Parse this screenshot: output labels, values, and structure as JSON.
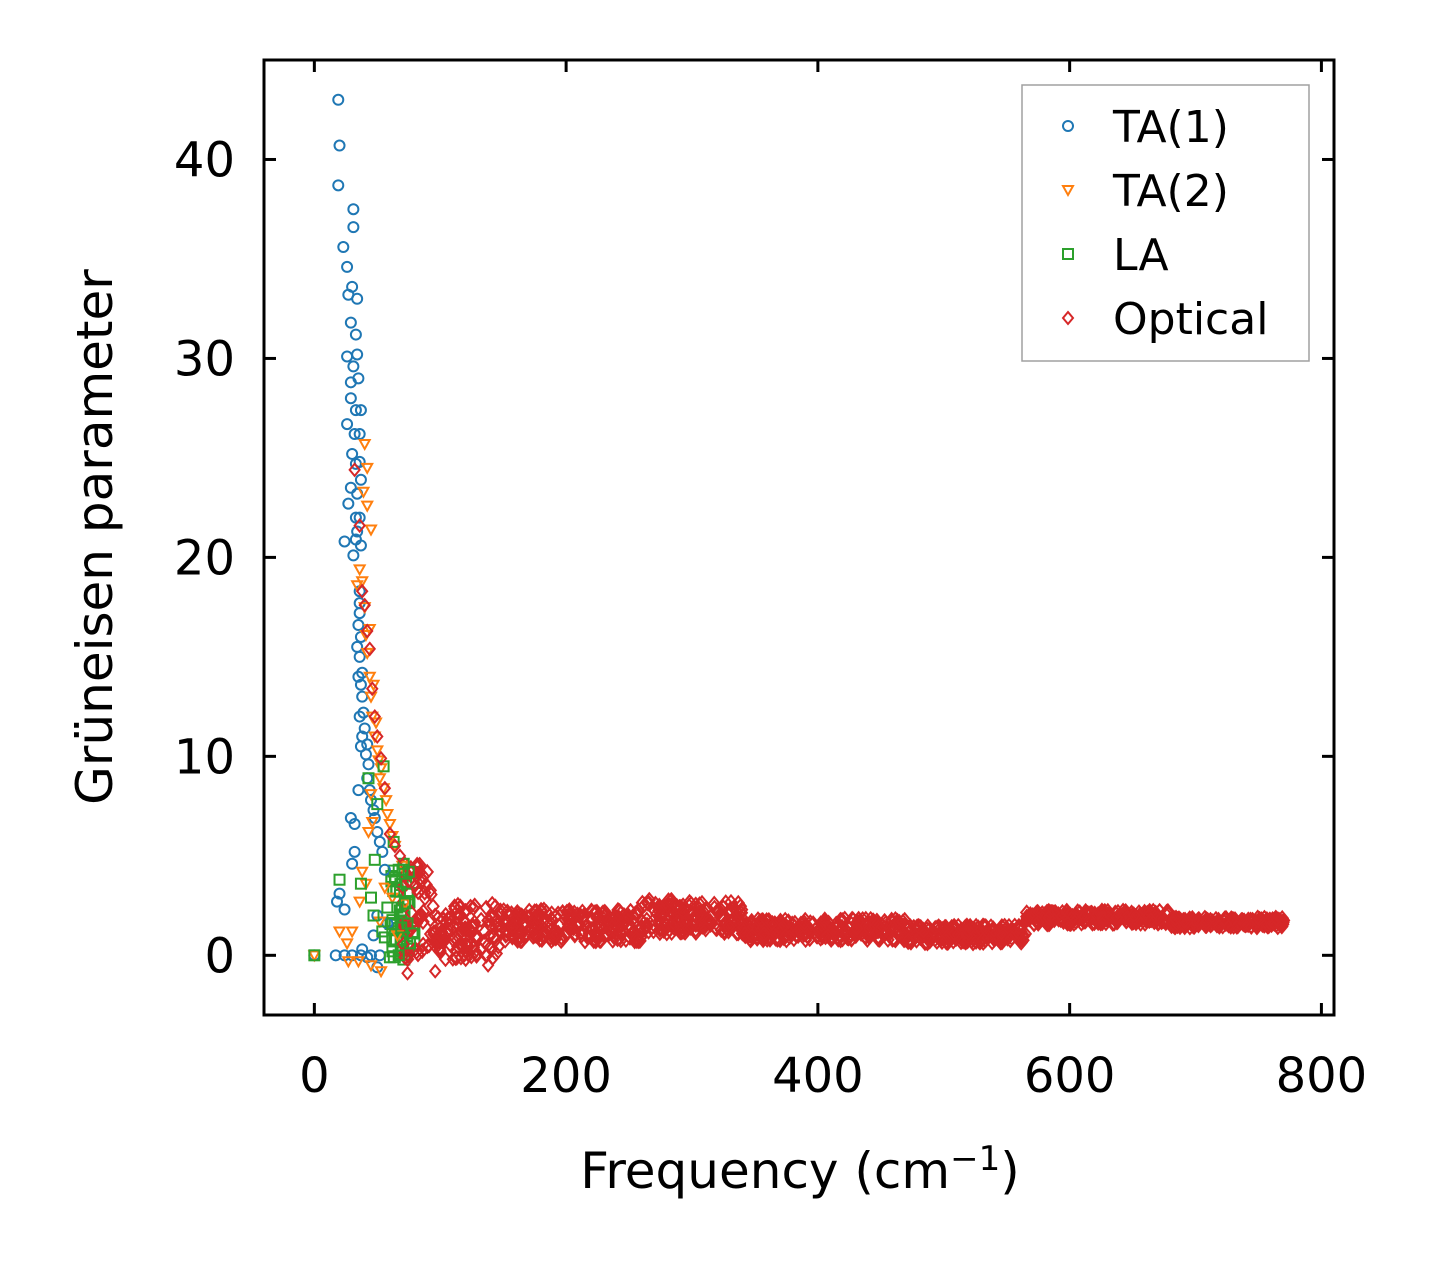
{
  "chart_data": {
    "type": "scatter",
    "title": "",
    "xlabel": "Frequency (cm",
    "xlabel_sup": "−1",
    "xlabel_end": ")",
    "ylabel": "Grüneisen parameter",
    "xlim": [
      -40,
      810
    ],
    "ylim": [
      -3,
      45
    ],
    "xticks": [
      0,
      200,
      400,
      600,
      800
    ],
    "yticks": [
      0,
      10,
      20,
      30,
      40
    ],
    "grid": false,
    "legend_position": "top-right",
    "series": [
      {
        "name": "TA(1)",
        "marker": "circle",
        "color": "#1f77b4",
        "points": [
          [
            0,
            0
          ],
          [
            17,
            0
          ],
          [
            24,
            0
          ],
          [
            30,
            0
          ],
          [
            37,
            0
          ],
          [
            45,
            0
          ],
          [
            52,
            0
          ],
          [
            19,
            43.0
          ],
          [
            20,
            40.7
          ],
          [
            19,
            38.7
          ],
          [
            23,
            35.6
          ],
          [
            26,
            34.6
          ],
          [
            31,
            37.5
          ],
          [
            31,
            36.6
          ],
          [
            30,
            33.6
          ],
          [
            27,
            33.2
          ],
          [
            34,
            33.0
          ],
          [
            29,
            31.8
          ],
          [
            33,
            31.2
          ],
          [
            26,
            30.1
          ],
          [
            34,
            30.2
          ],
          [
            29,
            28.8
          ],
          [
            31,
            29.6
          ],
          [
            35,
            29.0
          ],
          [
            29,
            28.0
          ],
          [
            33,
            27.4
          ],
          [
            37,
            27.4
          ],
          [
            26,
            26.7
          ],
          [
            32,
            26.2
          ],
          [
            36,
            26.2
          ],
          [
            30,
            25.2
          ],
          [
            33,
            24.7
          ],
          [
            36,
            24.8
          ],
          [
            29,
            23.5
          ],
          [
            34,
            23.2
          ],
          [
            37,
            23.9
          ],
          [
            27,
            22.7
          ],
          [
            33,
            22.0
          ],
          [
            36,
            22.0
          ],
          [
            34,
            21.3
          ],
          [
            24,
            20.8
          ],
          [
            33,
            20.9
          ],
          [
            37,
            20.6
          ],
          [
            31,
            20.1
          ],
          [
            36,
            18.3
          ],
          [
            36,
            17.7
          ],
          [
            36,
            17.2
          ],
          [
            35,
            16.6
          ],
          [
            37,
            16.0
          ],
          [
            34,
            15.5
          ],
          [
            36,
            15.0
          ],
          [
            38,
            14.2
          ],
          [
            35,
            14.0
          ],
          [
            37,
            13.6
          ],
          [
            38,
            13.0
          ],
          [
            39,
            12.2
          ],
          [
            36,
            12.0
          ],
          [
            40,
            11.4
          ],
          [
            38,
            11.0
          ],
          [
            42,
            10.6
          ],
          [
            37,
            10.5
          ],
          [
            41,
            10.1
          ],
          [
            43,
            9.6
          ],
          [
            42,
            8.9
          ],
          [
            44,
            8.3
          ],
          [
            35,
            8.3
          ],
          [
            45,
            7.8
          ],
          [
            47,
            7.3
          ],
          [
            48,
            6.9
          ],
          [
            29,
            6.9
          ],
          [
            32,
            6.6
          ],
          [
            50,
            6.2
          ],
          [
            52,
            5.7
          ],
          [
            54,
            5.2
          ],
          [
            32,
            5.2
          ],
          [
            30,
            4.6
          ],
          [
            56,
            4.3
          ],
          [
            20,
            3.1
          ],
          [
            24,
            2.3
          ],
          [
            18,
            2.7
          ],
          [
            50,
            2.0
          ],
          [
            47,
            1.0
          ],
          [
            58,
            1.6
          ],
          [
            42,
            -0.1
          ],
          [
            50,
            -0.6
          ],
          [
            38,
            0.3
          ]
        ]
      },
      {
        "name": "TA(2)",
        "marker": "triangle-down",
        "color": "#ff7f0e",
        "points": [
          [
            0,
            0
          ],
          [
            36,
            19.4
          ],
          [
            38,
            18.8
          ],
          [
            40,
            17.5
          ],
          [
            41,
            16.1
          ],
          [
            42,
            15.2
          ],
          [
            44,
            14.0
          ],
          [
            45,
            13.0
          ],
          [
            46,
            12.0
          ],
          [
            48,
            11.0
          ],
          [
            50,
            10.3
          ],
          [
            53,
            9.4
          ],
          [
            55,
            8.4
          ],
          [
            57,
            7.8
          ],
          [
            58,
            7.1
          ],
          [
            60,
            6.6
          ],
          [
            62,
            6.0
          ],
          [
            64,
            5.5
          ],
          [
            40,
            25.7
          ],
          [
            42,
            24.5
          ],
          [
            45,
            21.4
          ],
          [
            39,
            23.3
          ],
          [
            42,
            22.6
          ],
          [
            34,
            18.6
          ],
          [
            44,
            16.4
          ],
          [
            47,
            13.6
          ],
          [
            49,
            11.7
          ],
          [
            51,
            9.8
          ],
          [
            52,
            8.9
          ],
          [
            45,
            8.1
          ],
          [
            46,
            6.7
          ],
          [
            43,
            6.2
          ],
          [
            38,
            4.2
          ],
          [
            41,
            3.6
          ],
          [
            36,
            2.7
          ],
          [
            30,
            1.2
          ],
          [
            26,
            0.6
          ],
          [
            20,
            1.2
          ],
          [
            27,
            -0.3
          ],
          [
            35,
            -0.3
          ],
          [
            45,
            -0.5
          ],
          [
            53,
            -0.8
          ],
          [
            70,
            4.5
          ],
          [
            72,
            2.6
          ],
          [
            66,
            1.0
          ],
          [
            62,
            2.9
          ],
          [
            56,
            3.4
          ],
          [
            52,
            1.7
          ]
        ]
      },
      {
        "name": "LA",
        "marker": "square",
        "color": "#2ca02c",
        "points": [
          [
            0,
            0
          ],
          [
            20,
            3.8
          ],
          [
            37,
            3.6
          ],
          [
            43,
            8.9
          ],
          [
            55,
            9.5
          ],
          [
            50,
            7.6
          ],
          [
            63,
            5.7
          ],
          [
            48,
            4.8
          ],
          [
            45,
            2.9
          ],
          [
            47,
            2.0
          ],
          [
            54,
            1.2
          ],
          [
            60,
            -0.1
          ],
          [
            66,
            2.4
          ],
          [
            68,
            3.2
          ],
          [
            70,
            4.3
          ],
          [
            72,
            2.6
          ],
          [
            74,
            1.6
          ],
          [
            76,
            0.6
          ],
          [
            78,
            1.1
          ],
          [
            64,
            3.9
          ],
          [
            62,
            1.6
          ],
          [
            58,
            2.4
          ],
          [
            56,
            0.9
          ],
          [
            62,
            0.2
          ],
          [
            67,
            0.0
          ],
          [
            69,
            1.4
          ],
          [
            73,
            3.6
          ],
          [
            75,
            4.2
          ],
          [
            71,
            4.6
          ],
          [
            67,
            4.3
          ]
        ]
      },
      {
        "name": "Optical",
        "marker": "diamond",
        "color": "#d62728",
        "points": [
          [
            32,
            24.4
          ],
          [
            36,
            21.6
          ],
          [
            38,
            18.3
          ],
          [
            40,
            17.6
          ],
          [
            42,
            16.3
          ],
          [
            44,
            15.4
          ],
          [
            46,
            13.4
          ],
          [
            48,
            12.0
          ],
          [
            50,
            11.0
          ],
          [
            53,
            9.9
          ],
          [
            56,
            8.4
          ],
          [
            60,
            6.1
          ],
          [
            64,
            5.5
          ],
          [
            68,
            5.0
          ],
          [
            74,
            -0.9
          ],
          [
            80,
            3.5
          ],
          [
            96,
            -0.8
          ],
          [
            110,
            -0.2
          ],
          [
            138,
            -0.5
          ]
        ]
      }
    ],
    "dense_regions": [
      {
        "series": "LA",
        "x_range": [
          60,
          80
        ],
        "y_center": 2.0,
        "y_halfwidth": 2.3
      },
      {
        "series": "Optical",
        "x_range": [
          70,
          95
        ],
        "y_center": 2.2,
        "y_halfwidth": 2.4
      },
      {
        "series": "Optical",
        "x_range": [
          95,
          150
        ],
        "y_center": 1.2,
        "y_halfwidth": 1.4
      },
      {
        "series": "Optical",
        "x_range": [
          150,
          260
        ],
        "y_center": 1.5,
        "y_halfwidth": 0.8
      },
      {
        "series": "Optical",
        "x_range": [
          260,
          290
        ],
        "y_center": 2.0,
        "y_halfwidth": 0.9
      },
      {
        "series": "Optical",
        "x_range": [
          290,
          340
        ],
        "y_center": 1.9,
        "y_halfwidth": 0.8
      },
      {
        "series": "Optical",
        "x_range": [
          340,
          470
        ],
        "y_center": 1.3,
        "y_halfwidth": 0.55
      },
      {
        "series": "Optical",
        "x_range": [
          470,
          565
        ],
        "y_center": 1.05,
        "y_halfwidth": 0.45
      },
      {
        "series": "Optical",
        "x_range": [
          565,
          680
        ],
        "y_center": 1.9,
        "y_halfwidth": 0.35
      },
      {
        "series": "Optical",
        "x_range": [
          680,
          770
        ],
        "y_center": 1.65,
        "y_halfwidth": 0.25
      }
    ]
  }
}
